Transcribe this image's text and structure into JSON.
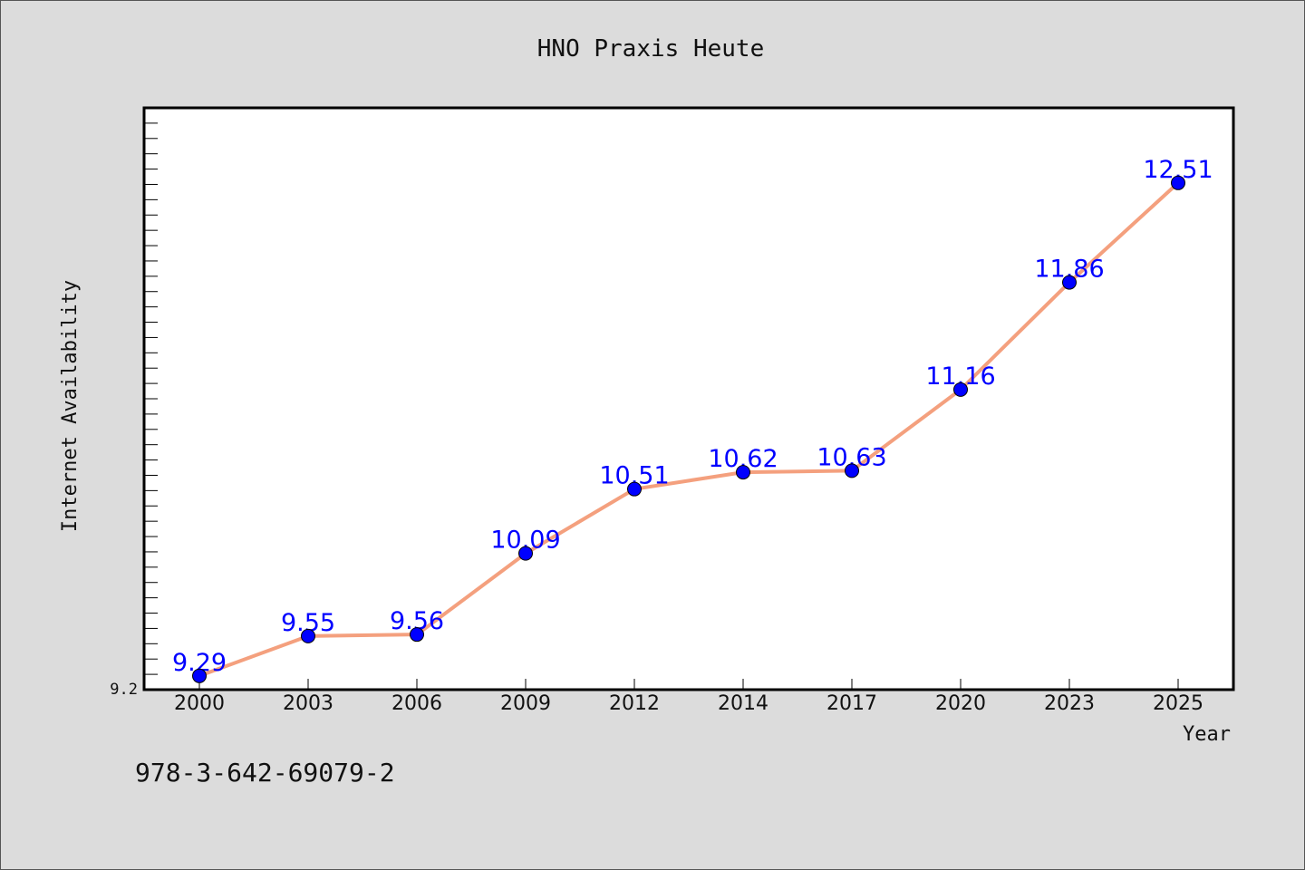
{
  "chart_data": {
    "type": "line",
    "title": "HNO Praxis Heute",
    "xlabel": "Year",
    "ylabel": "Internet Availability",
    "categories": [
      "2000",
      "2003",
      "2006",
      "2009",
      "2012",
      "2014",
      "2017",
      "2020",
      "2023",
      "2025"
    ],
    "series": [
      {
        "values": [
          9.29,
          9.55,
          9.56,
          10.09,
          10.51,
          10.62,
          10.63,
          11.16,
          11.86,
          12.51
        ]
      }
    ],
    "data_labels": [
      "9.29",
      "9.55",
      "9.56",
      "10.09",
      "10.51",
      "10.62",
      "10.63",
      "11.16",
      "11.86",
      "12.51"
    ],
    "y_tick_labels": [
      "9.2"
    ],
    "ylim": [
      9.2,
      13.0
    ],
    "grid": false,
    "line_color": "#f4a07e",
    "marker_color": "#0000ff",
    "label_color": "#0000ff",
    "footer_text": "978-3-642-69079-2"
  }
}
